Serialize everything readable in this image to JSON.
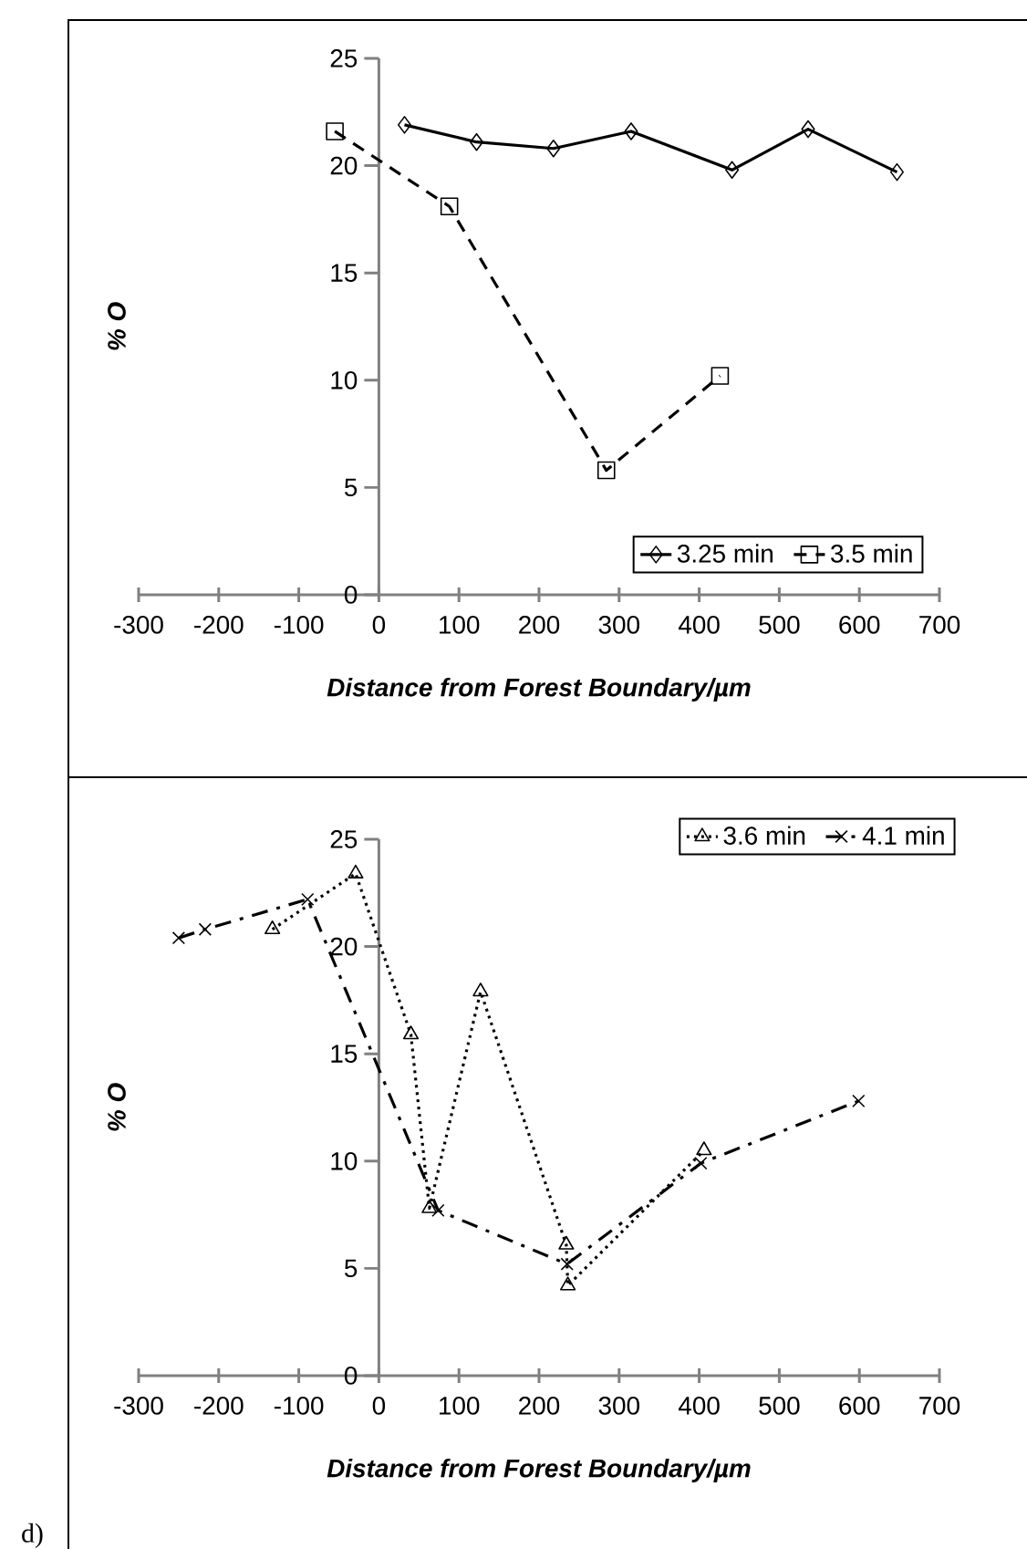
{
  "chart_data": [
    {
      "type": "line",
      "xlabel": "Distance from Forest Boundary/µm",
      "ylabel": "% O",
      "xlim": [
        -300,
        700
      ],
      "ylim": [
        0,
        25
      ],
      "xticks": [
        -300,
        -200,
        -100,
        0,
        100,
        200,
        300,
        400,
        500,
        600,
        700
      ],
      "yticks": [
        0,
        5,
        10,
        15,
        20,
        25
      ],
      "legend": "bottom right",
      "grid": false,
      "series": [
        {
          "name": "3.25 min",
          "color": "#000000",
          "marker": "diamond",
          "line_style": "solid",
          "x": [
            32,
            122,
            218,
            315,
            441,
            536,
            647
          ],
          "values": [
            21.9,
            21.1,
            20.8,
            21.6,
            19.8,
            21.7,
            19.7
          ]
        },
        {
          "name": "3.5 min",
          "color": "#000000",
          "marker": "square",
          "line_style": "dashed",
          "x": [
            -55,
            88,
            284,
            426
          ],
          "values": [
            21.6,
            18.1,
            5.8,
            10.2
          ]
        }
      ]
    },
    {
      "type": "line",
      "xlabel": "Distance from Forest Boundary/µm",
      "ylabel": "% O",
      "xlim": [
        -300,
        700
      ],
      "ylim": [
        0,
        25
      ],
      "xticks": [
        -300,
        -200,
        -100,
        0,
        100,
        200,
        300,
        400,
        500,
        600,
        700
      ],
      "yticks": [
        0,
        5,
        10,
        15,
        20,
        25
      ],
      "legend": "top right",
      "grid": false,
      "annotations": [
        "d)"
      ],
      "series": [
        {
          "name": "3.6 min",
          "color": "#000000",
          "marker": "triangle",
          "line_style": "dotted",
          "x": [
            -133,
            -29,
            40,
            63,
            127,
            234,
            236,
            406
          ],
          "values": [
            20.8,
            23.4,
            15.9,
            7.8,
            17.9,
            6.1,
            4.2,
            10.5
          ]
        },
        {
          "name": "4.1 min",
          "color": "#000000",
          "marker": "cross",
          "line_style": "dashdot",
          "x": [
            -250,
            -217,
            -89,
            74,
            235,
            402,
            599
          ],
          "values": [
            20.4,
            20.8,
            22.2,
            7.7,
            5.2,
            9.9,
            12.8
          ]
        }
      ]
    }
  ]
}
